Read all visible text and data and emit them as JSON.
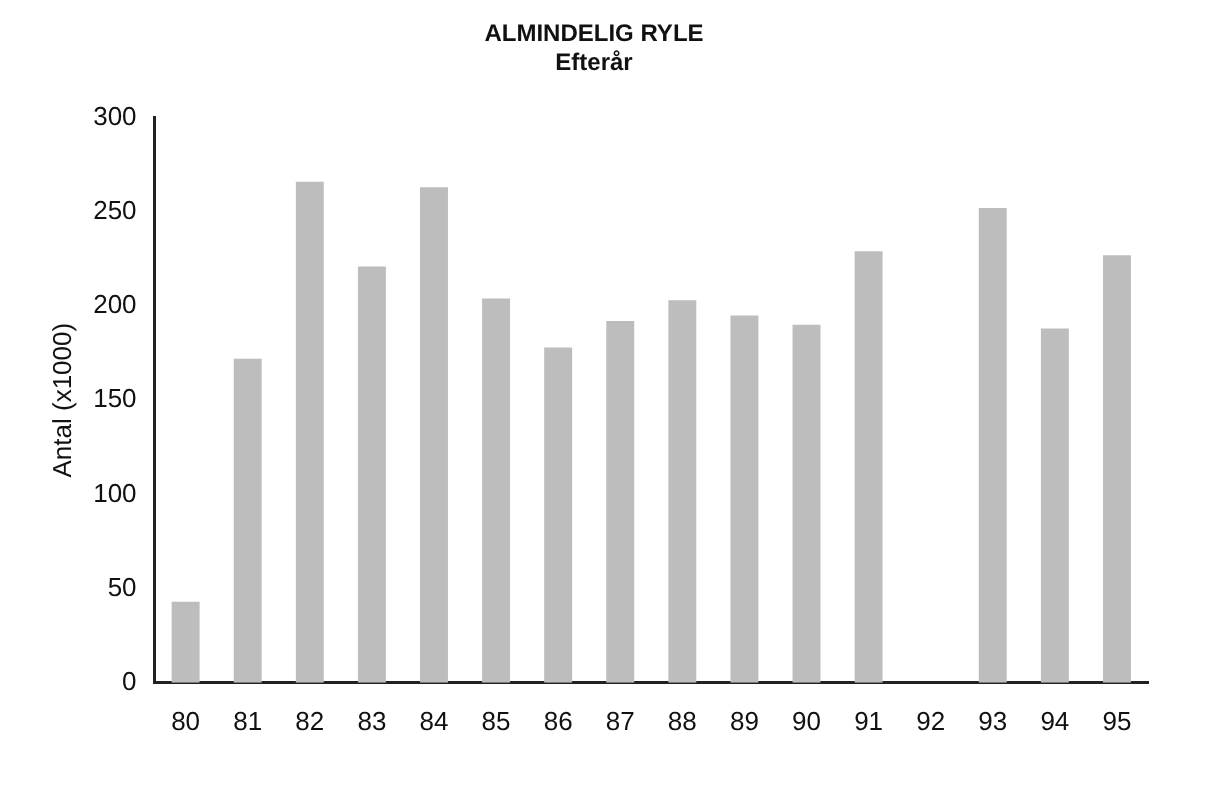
{
  "chart_data": {
    "type": "bar",
    "title": "ALMINDELIG RYLE",
    "subtitle": "Efterår",
    "ylabel": "Antal (x1000)",
    "categories": [
      "80",
      "81",
      "82",
      "83",
      "84",
      "85",
      "86",
      "87",
      "88",
      "89",
      "90",
      "91",
      "92",
      "93",
      "94",
      "95"
    ],
    "values": [
      43,
      172,
      266,
      221,
      263,
      204,
      178,
      192,
      203,
      195,
      190,
      229,
      null,
      252,
      188,
      227
    ],
    "color": "#bdbdbd",
    "ylim": [
      0,
      300
    ],
    "yticks": [
      0,
      50,
      100,
      150,
      200,
      250,
      300
    ],
    "grid": false,
    "legend": false
  }
}
